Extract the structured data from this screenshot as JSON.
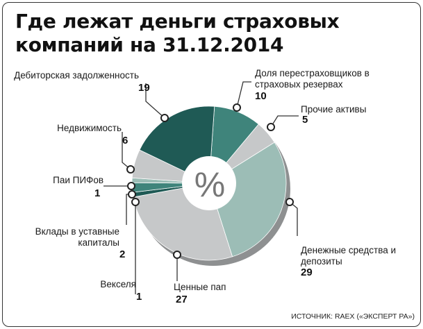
{
  "title": {
    "line1": "Где лежат деньги страховых",
    "line2": "компаний на 31.12.2014"
  },
  "center_symbol": "%",
  "source": "ИСТОЧНИК: RAEX («ЭКСПЕРТ РА»)",
  "colors": {
    "dark_teal": "#1f5a55",
    "medium_teal": "#3f847b",
    "light_teal": "#9cbdb6",
    "light_gray": "#c6c8c9",
    "shadow_gray": "#8e9091"
  },
  "chart_data": {
    "type": "pie",
    "unit": "%",
    "slices": [
      {
        "label": "Доля перестраховщиков в страховых резервах",
        "value": 10
      },
      {
        "label": "Прочие активы",
        "value": 5
      },
      {
        "label": "Денежные средства и депозиты",
        "value": 29
      },
      {
        "label": "Ценные пап",
        "value": 27
      },
      {
        "label": "Векселя",
        "value": 1
      },
      {
        "label": "Вклады в уставные капиталы",
        "value": 2
      },
      {
        "label": "Паи ПИФов",
        "value": 1
      },
      {
        "label": "Недвижимость",
        "value": 6
      },
      {
        "label": "Дебиторская задолженность",
        "value": 19
      }
    ]
  }
}
